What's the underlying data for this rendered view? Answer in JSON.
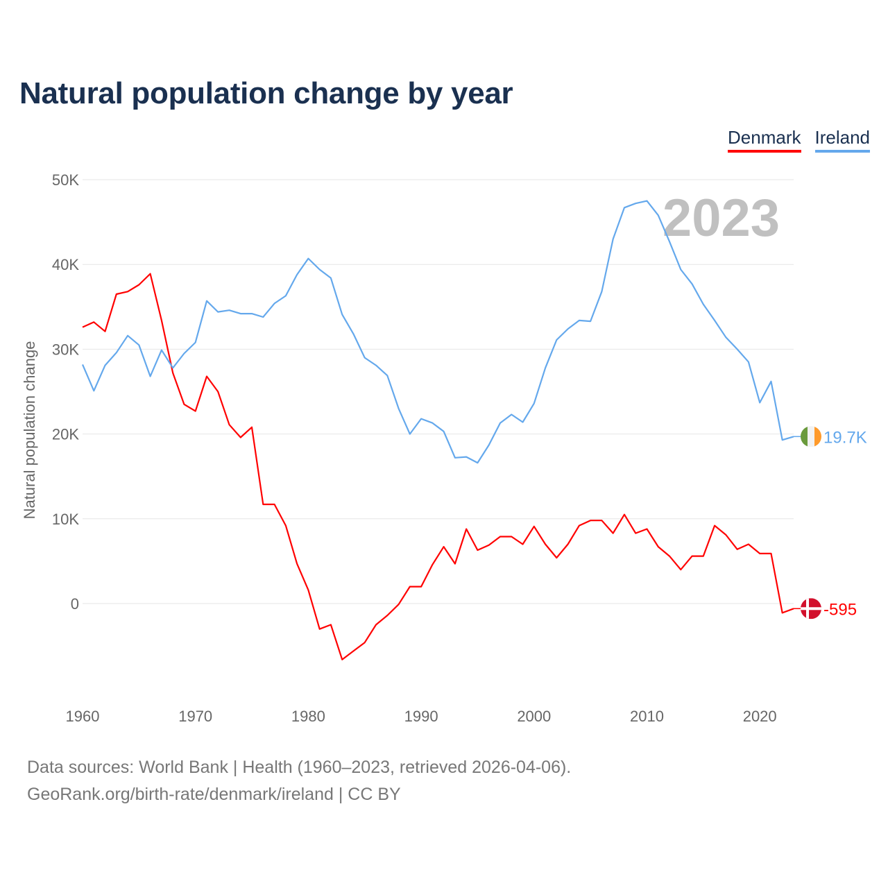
{
  "title": "Natural population change by year",
  "legend": [
    {
      "label": "Denmark",
      "color": "#ff0000"
    },
    {
      "label": "Ireland",
      "color": "#64a8ec"
    }
  ],
  "year_watermark": "2023",
  "end_labels": {
    "denmark": "-595",
    "ireland": "19.7K"
  },
  "source": {
    "line1": "Data sources: World Bank | Health (1960–2023, retrieved 2026-04-06).",
    "line2": "GeoRank.org/birth-rate/denmark/ireland | CC BY"
  },
  "chart_data": {
    "type": "line",
    "title": "Natural population change by year",
    "xlabel": "",
    "ylabel": "Natural population change",
    "xlim": [
      1960,
      2023
    ],
    "ylim": [
      -10000,
      50000
    ],
    "x_ticks": [
      1960,
      1970,
      1980,
      1990,
      2000,
      2010,
      2020
    ],
    "x_tick_labels": [
      "1960",
      "1970",
      "1980",
      "1990",
      "2000",
      "2010",
      "2020"
    ],
    "y_ticks": [
      0,
      10000,
      20000,
      30000,
      40000,
      50000
    ],
    "y_tick_labels": [
      "0",
      "10K",
      "20K",
      "30K",
      "40K",
      "50K"
    ],
    "grid": true,
    "legend_position": "top-right",
    "x_start": 1960,
    "series": [
      {
        "name": "Denmark",
        "color": "#ff0000",
        "values": [
          32600,
          33200,
          32100,
          36500,
          36800,
          37600,
          38900,
          33400,
          27200,
          23500,
          22700,
          26800,
          25000,
          21100,
          19600,
          20800,
          11700,
          11700,
          9200,
          4700,
          1600,
          -3000,
          -2500,
          -6600,
          -5600,
          -4600,
          -2500,
          -1400,
          -100,
          2000,
          2000,
          4600,
          6700,
          4700,
          8800,
          6300,
          6900,
          7900,
          7900,
          7000,
          9100,
          7000,
          5400,
          7000,
          9200,
          9800,
          9800,
          8300,
          10500,
          8300,
          8800,
          6700,
          5600,
          4000,
          5600,
          5600,
          9200,
          8100,
          6400,
          7000,
          5900,
          5900,
          -1100,
          -595
        ]
      },
      {
        "name": "Ireland",
        "color": "#64a8ec",
        "values": [
          28200,
          25100,
          28100,
          29600,
          31600,
          30500,
          26800,
          29900,
          27800,
          29500,
          30800,
          35700,
          34400,
          34600,
          34200,
          34200,
          33800,
          35400,
          36300,
          38800,
          40700,
          39400,
          38400,
          34100,
          31800,
          29000,
          28100,
          26900,
          23000,
          20000,
          21800,
          21300,
          20300,
          17200,
          17300,
          16600,
          18700,
          21300,
          22300,
          21400,
          23600,
          27800,
          31100,
          32400,
          33400,
          33300,
          36800,
          43000,
          46700,
          47200,
          47500,
          45800,
          42700,
          39400,
          37700,
          35300,
          33400,
          31400,
          30000,
          28500,
          23700,
          26200,
          19300,
          19700
        ]
      }
    ]
  }
}
